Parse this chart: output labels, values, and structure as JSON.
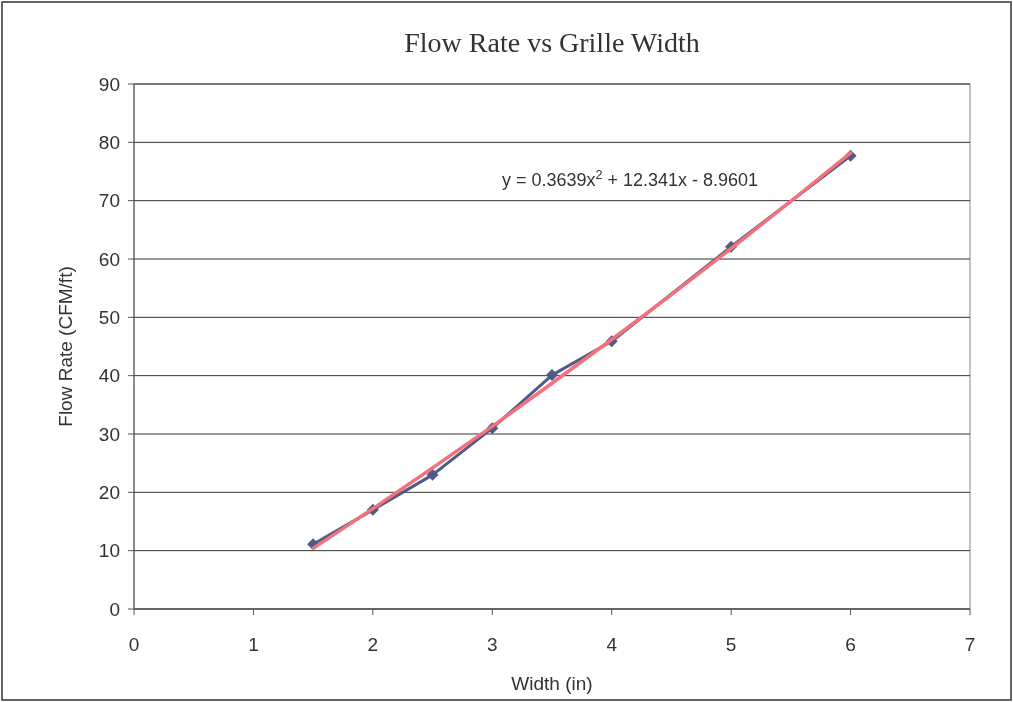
{
  "chart_data": {
    "type": "line",
    "title": "Flow Rate vs Grille Width",
    "xlabel": "Width (in)",
    "ylabel": "Flow Rate (CFM/ft)",
    "xlim": [
      0,
      7
    ],
    "xticks": [
      0,
      1,
      2,
      3,
      4,
      5,
      6,
      7
    ],
    "ylim": [
      0,
      90
    ],
    "yticks": [
      0,
      10,
      20,
      30,
      40,
      50,
      60,
      70,
      80,
      90
    ],
    "grid": "y",
    "series": [
      {
        "color": "#4f5b86",
        "marker": "diamond",
        "x": [
          1.5,
          2,
          2.5,
          3,
          3.5,
          4,
          5,
          6
        ],
        "values": [
          11.1,
          17.0,
          23.0,
          31.0,
          40.1,
          45.9,
          62.1,
          77.7
        ]
      },
      {
        "color": "#f4707a",
        "marker": "none",
        "x": [
          1.5,
          2,
          2.5,
          3,
          3.5,
          4,
          4.5,
          5,
          5.5,
          6
        ],
        "values": [
          10.4,
          17.2,
          24.2,
          31.3,
          38.7,
          46.2,
          53.9,
          61.8,
          69.9,
          78.2
        ]
      }
    ],
    "annotations": [
      "y = 0.3639x$^{2}$ + 12.341x - 8.9601"
    ]
  }
}
